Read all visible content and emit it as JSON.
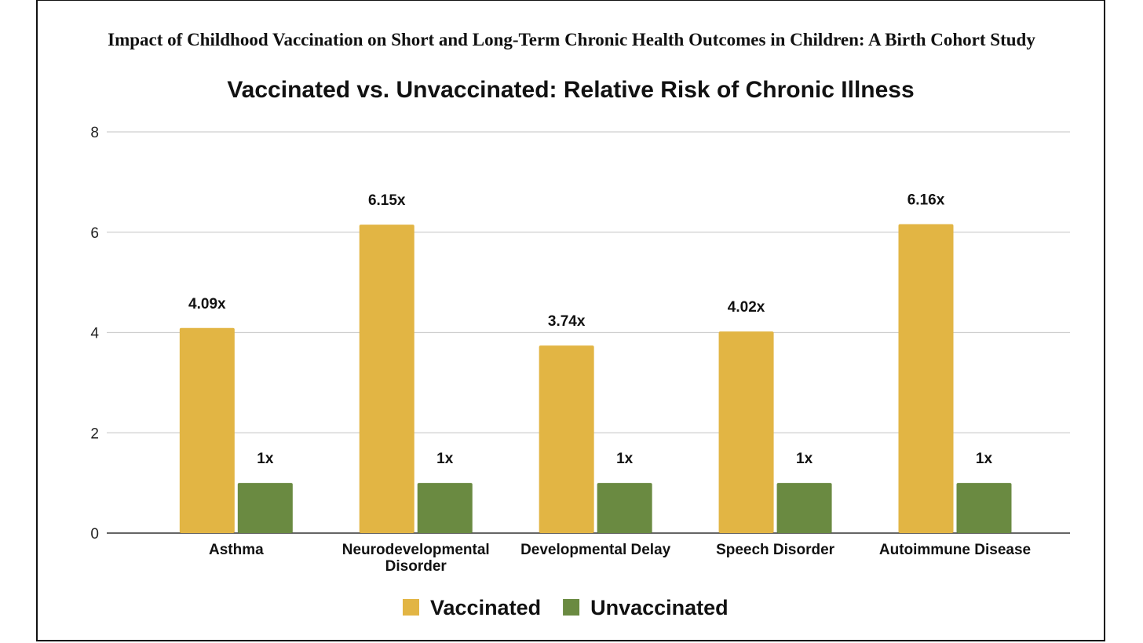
{
  "page": {
    "header_title": "Impact of Childhood Vaccination on Short and Long-Term Chronic Health Outcomes in Children: A Birth Cohort Study"
  },
  "chart_data": {
    "type": "bar",
    "title": "Vaccinated vs. Unvaccinated: Relative Risk of Chronic Illness",
    "xlabel": "",
    "ylabel": "",
    "categories": [
      [
        "Asthma"
      ],
      [
        "Neurodevelopmental",
        "Disorder"
      ],
      [
        "Developmental Delay"
      ],
      [
        "Speech Disorder"
      ],
      [
        "Autoimmune Disease"
      ]
    ],
    "series": [
      {
        "name": "Vaccinated",
        "color": "#E2B544",
        "values": [
          4.09,
          6.15,
          3.74,
          4.02,
          6.16
        ],
        "labels": [
          "4.09x",
          "6.15x",
          "3.74x",
          "4.02x",
          "6.16x"
        ]
      },
      {
        "name": "Unvaccinated",
        "color": "#6A8A41",
        "values": [
          1,
          1,
          1,
          1,
          1
        ],
        "labels": [
          "1x",
          "1x",
          "1x",
          "1x",
          "1x"
        ]
      }
    ],
    "ylim": [
      0,
      8
    ],
    "yticks": [
      "0",
      "2",
      "4",
      "6",
      "8"
    ],
    "grid": true,
    "legend_position": "bottom"
  }
}
